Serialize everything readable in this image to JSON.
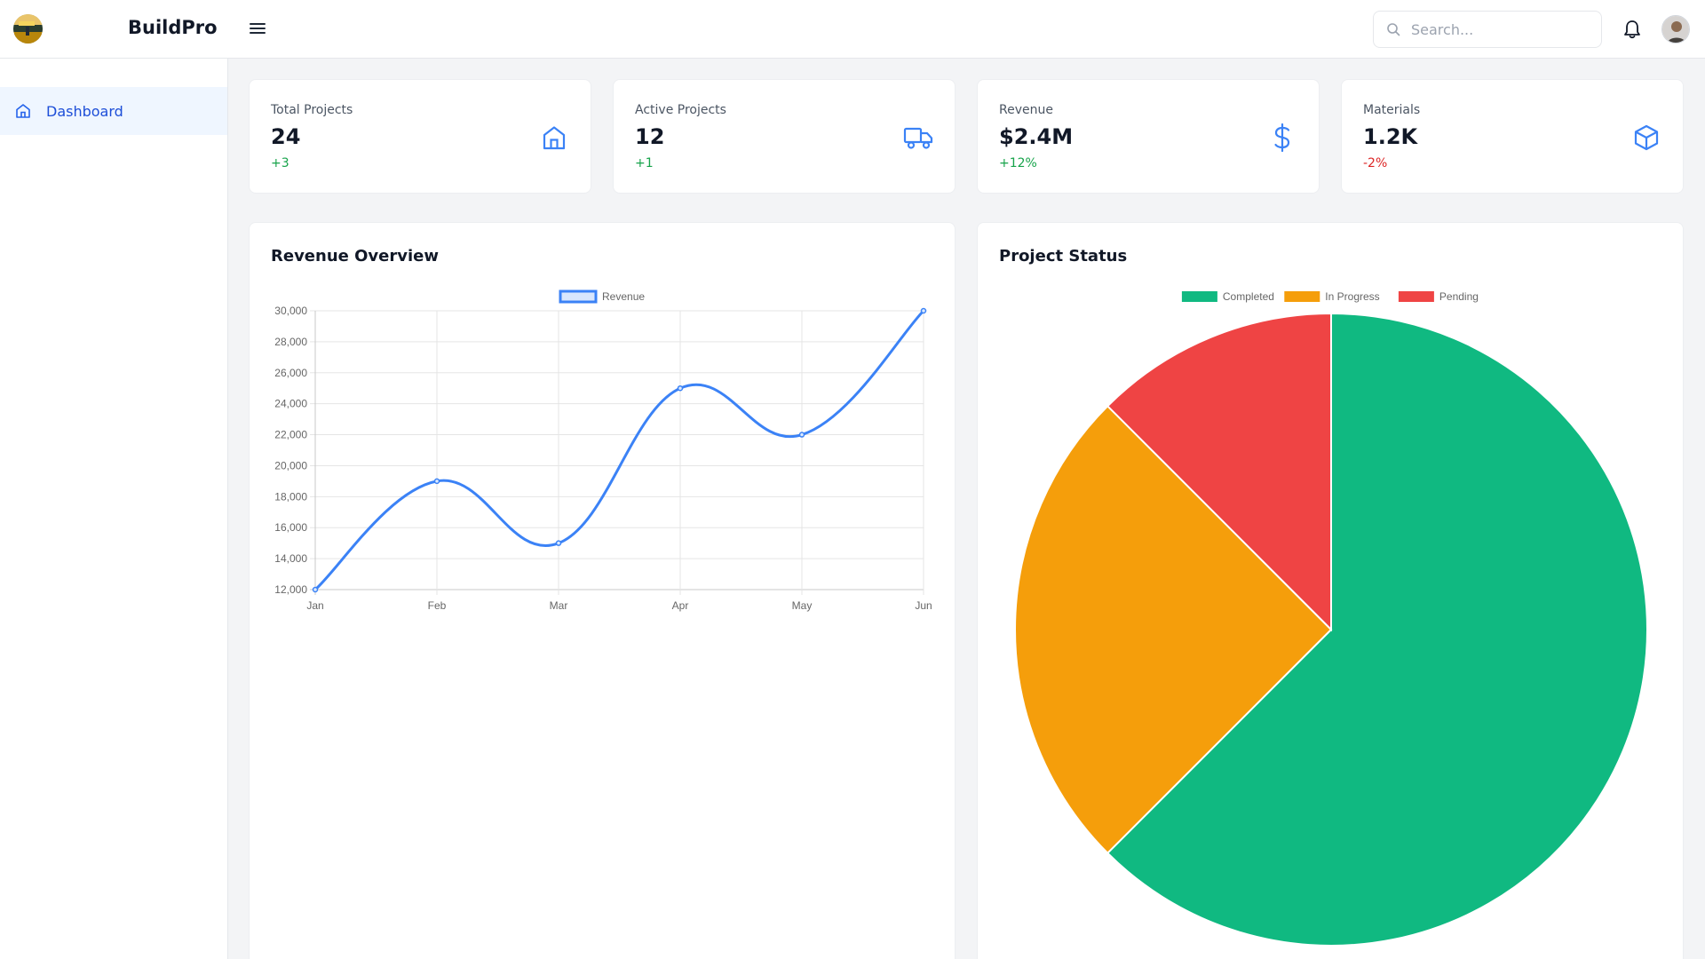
{
  "header": {
    "brand": "BuildPro",
    "search_placeholder": "Search..."
  },
  "sidebar": {
    "items": [
      {
        "label": "Dashboard",
        "icon": "home-icon",
        "active": true
      }
    ]
  },
  "stats": [
    {
      "title": "Total Projects",
      "value": "24",
      "change": "+3",
      "trend": "up",
      "icon": "home-icon"
    },
    {
      "title": "Active Projects",
      "value": "12",
      "change": "+1",
      "trend": "up",
      "icon": "truck-icon"
    },
    {
      "title": "Revenue",
      "value": "$2.4M",
      "change": "+12%",
      "trend": "up",
      "icon": "dollar-icon"
    },
    {
      "title": "Materials",
      "value": "1.2K",
      "change": "-2%",
      "trend": "down",
      "icon": "box-icon"
    }
  ],
  "colors": {
    "accent": "#3b82f6",
    "positive": "#16a34a",
    "negative": "#dc2626",
    "completed": "#10b981",
    "in_progress": "#f59e0b",
    "pending": "#ef4444"
  },
  "charts": {
    "revenue_title": "Revenue Overview",
    "status_title": "Project Status"
  },
  "chart_data": [
    {
      "type": "line",
      "categories": [
        "Jan",
        "Feb",
        "Mar",
        "Apr",
        "May",
        "Jun"
      ],
      "series": [
        {
          "name": "Revenue",
          "values": [
            12000,
            19000,
            15000,
            25000,
            22000,
            30000
          ]
        }
      ],
      "ylim": [
        12000,
        30000
      ],
      "yticks": [
        "12,000",
        "14,000",
        "16,000",
        "18,000",
        "20,000",
        "22,000",
        "24,000",
        "26,000",
        "28,000",
        "30,000"
      ],
      "grid": true,
      "legend": "top"
    },
    {
      "type": "pie",
      "categories": [
        "Completed",
        "In Progress",
        "Pending"
      ],
      "values": [
        15,
        6,
        3
      ],
      "colors": [
        "#10b981",
        "#f59e0b",
        "#ef4444"
      ],
      "legend": "top"
    }
  ]
}
